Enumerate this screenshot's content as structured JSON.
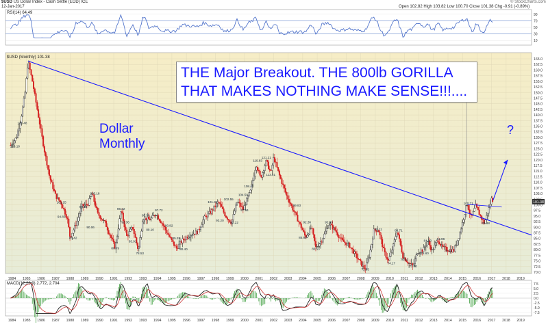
{
  "header": {
    "symbol": "$USD",
    "name": "US Dollar Index - Cash Settle (EOD)",
    "exchange": "ICE",
    "date": "12-Jan-2017",
    "open_label": "Open",
    "open": "102.82",
    "high_label": "High",
    "high": "103.82",
    "low_label": "Low",
    "low": "100.70",
    "close_label": "Close",
    "close": "101.38",
    "chg_label": "Chg",
    "chg": "-0.91 (-0.89%)",
    "watermark": "© StockCharts.com"
  },
  "rsi_panel": {
    "label": "RSI(14) 64.49",
    "ticks": [
      "90",
      "70",
      "50",
      "30",
      "10"
    ],
    "current": "64.49"
  },
  "price_panel": {
    "label": "$USD (Monthly) 101.38",
    "current_price": "101.38"
  },
  "macd_panel": {
    "label": "MACD(12,26,9) 2.772, 2.704",
    "ticks": [
      "7.5",
      "5.0",
      "2.5",
      "0.0",
      "-2.5",
      "-5.0",
      "-7.5"
    ],
    "current_macd": "2.772",
    "current_hist": "0.068"
  },
  "annotations": {
    "callout_line1": "THE Major Breakout.  THE 800lb GORILLA",
    "callout_line2": "THAT MAKES NOTHING MAKE SENSE!!!....",
    "dollar_monthly_line1": "Dollar",
    "dollar_monthly_line2": "Monthly",
    "question": "?"
  },
  "colors": {
    "background_top": "#f6edc6",
    "background_bottom": "#e8ecd9",
    "annotation": "#1a1aff",
    "candle_up": "#222222",
    "candle_down": "#d42020",
    "trendline": "#1a1aff",
    "rsi_line": "#5577cc",
    "macd_line": "#222222",
    "signal_line": "#cc3333",
    "histogram": "#55aa55"
  },
  "chart_data": {
    "type": "line",
    "title": "$USD (Monthly) 101.38",
    "x_ticks": [
      "1984",
      "1985",
      "1986",
      "1987",
      "1988",
      "1989",
      "1990",
      "1991",
      "1992",
      "1993",
      "1994",
      "1995",
      "1996",
      "1997",
      "1998",
      "1999",
      "2000",
      "2001",
      "2002",
      "2003",
      "2004",
      "2005",
      "2006",
      "2007",
      "2008",
      "2009",
      "2010",
      "2011",
      "2012",
      "2013",
      "2014",
      "2015",
      "2016",
      "2017",
      "2018",
      "2019"
    ],
    "y_ticks": [
      "165.0",
      "162.5",
      "160.0",
      "157.5",
      "155.0",
      "152.5",
      "150.0",
      "147.5",
      "145.0",
      "142.5",
      "140.0",
      "137.5",
      "135.0",
      "132.5",
      "130.0",
      "127.5",
      "125.0",
      "122.5",
      "120.0",
      "117.5",
      "115.0",
      "112.5",
      "110.0",
      "107.5",
      "105.0",
      "102.5",
      "100.0",
      "97.5",
      "95.0",
      "92.5",
      "90.0",
      "87.5",
      "85.0",
      "82.5",
      "80.0",
      "77.5",
      "75.0",
      "72.5",
      "70.0"
    ],
    "ylim": [
      70,
      165
    ],
    "series": [
      {
        "values": [
          {
            "x": 1983.9,
            "y": 126.5
          },
          {
            "x": 1984.3,
            "y": 130.0
          },
          {
            "x": 1984.6,
            "y": 138.0
          },
          {
            "x": 1984.9,
            "y": 150.0
          },
          {
            "x": 1985.1,
            "y": 164.0
          },
          {
            "x": 1985.4,
            "y": 155.0
          },
          {
            "x": 1985.8,
            "y": 140.0
          },
          {
            "x": 1986.2,
            "y": 125.0
          },
          {
            "x": 1986.6,
            "y": 112.0
          },
          {
            "x": 1987.0,
            "y": 104.0
          },
          {
            "x": 1987.4,
            "y": 100.5
          },
          {
            "x": 1987.8,
            "y": 94.0
          },
          {
            "x": 1988.0,
            "y": 85.4
          },
          {
            "x": 1988.5,
            "y": 93.0
          },
          {
            "x": 1988.8,
            "y": 99.5
          },
          {
            "x": 1989.2,
            "y": 100.0
          },
          {
            "x": 1989.5,
            "y": 105.0
          },
          {
            "x": 1989.9,
            "y": 96.0
          },
          {
            "x": 1990.4,
            "y": 92.0
          },
          {
            "x": 1990.9,
            "y": 84.0
          },
          {
            "x": 1991.1,
            "y": 80.8
          },
          {
            "x": 1991.5,
            "y": 97.5
          },
          {
            "x": 1991.9,
            "y": 86.0
          },
          {
            "x": 1992.3,
            "y": 90.0
          },
          {
            "x": 1992.7,
            "y": 79.5
          },
          {
            "x": 1993.0,
            "y": 94.0
          },
          {
            "x": 1993.5,
            "y": 93.5
          },
          {
            "x": 1993.9,
            "y": 96.0
          },
          {
            "x": 1994.3,
            "y": 92.0
          },
          {
            "x": 1994.8,
            "y": 86.0
          },
          {
            "x": 1995.3,
            "y": 80.5
          },
          {
            "x": 1995.7,
            "y": 84.0
          },
          {
            "x": 1996.2,
            "y": 86.5
          },
          {
            "x": 1996.8,
            "y": 88.0
          },
          {
            "x": 1997.2,
            "y": 94.0
          },
          {
            "x": 1997.7,
            "y": 97.0
          },
          {
            "x": 1998.2,
            "y": 101.3
          },
          {
            "x": 1998.7,
            "y": 95.0
          },
          {
            "x": 1999.1,
            "y": 92.0
          },
          {
            "x": 1999.5,
            "y": 101.5
          },
          {
            "x": 1999.9,
            "y": 98.0
          },
          {
            "x": 2000.4,
            "y": 106.0
          },
          {
            "x": 2000.8,
            "y": 118.0
          },
          {
            "x": 2001.1,
            "y": 112.0
          },
          {
            "x": 2001.5,
            "y": 119.5
          },
          {
            "x": 2001.8,
            "y": 114.0
          },
          {
            "x": 2002.0,
            "y": 121.2
          },
          {
            "x": 2002.4,
            "y": 113.0
          },
          {
            "x": 2002.9,
            "y": 104.0
          },
          {
            "x": 2003.4,
            "y": 97.0
          },
          {
            "x": 2003.9,
            "y": 90.0
          },
          {
            "x": 2004.2,
            "y": 85.6
          },
          {
            "x": 2004.6,
            "y": 90.0
          },
          {
            "x": 2004.9,
            "y": 81.0
          },
          {
            "x": 2005.3,
            "y": 84.0
          },
          {
            "x": 2005.8,
            "y": 91.5
          },
          {
            "x": 2006.2,
            "y": 89.0
          },
          {
            "x": 2006.7,
            "y": 84.0
          },
          {
            "x": 2007.2,
            "y": 82.0
          },
          {
            "x": 2007.7,
            "y": 77.0
          },
          {
            "x": 2008.1,
            "y": 73.0
          },
          {
            "x": 2008.3,
            "y": 71.3
          },
          {
            "x": 2008.6,
            "y": 78.0
          },
          {
            "x": 2008.9,
            "y": 88.5
          },
          {
            "x": 2009.2,
            "y": 89.1
          },
          {
            "x": 2009.6,
            "y": 79.0
          },
          {
            "x": 2009.9,
            "y": 75.0
          },
          {
            "x": 2010.2,
            "y": 81.0
          },
          {
            "x": 2010.5,
            "y": 88.7
          },
          {
            "x": 2010.9,
            "y": 77.0
          },
          {
            "x": 2011.3,
            "y": 74.0
          },
          {
            "x": 2011.6,
            "y": 72.7
          },
          {
            "x": 2011.9,
            "y": 79.0
          },
          {
            "x": 2012.3,
            "y": 80.0
          },
          {
            "x": 2012.6,
            "y": 84.0
          },
          {
            "x": 2012.9,
            "y": 79.5
          },
          {
            "x": 2013.3,
            "y": 84.5
          },
          {
            "x": 2013.6,
            "y": 81.0
          },
          {
            "x": 2014.0,
            "y": 80.0
          },
          {
            "x": 2014.4,
            "y": 79.7
          },
          {
            "x": 2014.8,
            "y": 87.0
          },
          {
            "x": 2015.1,
            "y": 95.0
          },
          {
            "x": 2015.3,
            "y": 100.7
          },
          {
            "x": 2015.6,
            "y": 94.0
          },
          {
            "x": 2015.9,
            "y": 99.5
          },
          {
            "x": 2016.3,
            "y": 94.0
          },
          {
            "x": 2016.5,
            "y": 91.9
          },
          {
            "x": 2016.8,
            "y": 98.0
          },
          {
            "x": 2017.0,
            "y": 103.0
          },
          {
            "x": 2017.1,
            "y": 101.4
          }
        ]
      }
    ],
    "data_labels": [
      {
        "x": 1984.2,
        "y": 126.18,
        "text": "126.18"
      },
      {
        "x": 1984.7,
        "y": 136.48,
        "text": "136.48"
      },
      {
        "x": 1987.4,
        "y": 101.25,
        "text": "101.25"
      },
      {
        "x": 1987.4,
        "y": 94.8,
        "text": "94.80"
      },
      {
        "x": 1988.2,
        "y": 85.42,
        "text": "85.42"
      },
      {
        "x": 1988.9,
        "y": 99.23,
        "text": "99.23"
      },
      {
        "x": 1989.4,
        "y": 90.06,
        "text": "90.06"
      },
      {
        "x": 1989.7,
        "y": 105.18,
        "text": "105.18"
      },
      {
        "x": 1991.1,
        "y": 80.79,
        "text": "80.79"
      },
      {
        "x": 1991.5,
        "y": 98.32,
        "text": "98.32"
      },
      {
        "x": 1991.8,
        "y": 92.36,
        "text": "92.36"
      },
      {
        "x": 1992.3,
        "y": 83.91,
        "text": "83.91"
      },
      {
        "x": 1992.8,
        "y": 78.53,
        "text": "78.53"
      },
      {
        "x": 1993.2,
        "y": 95.39,
        "text": "95.39"
      },
      {
        "x": 1993.5,
        "y": 89.1,
        "text": "89.10"
      },
      {
        "x": 1994.1,
        "y": 97.72,
        "text": "97.72"
      },
      {
        "x": 1994.8,
        "y": 90.82,
        "text": "90.82"
      },
      {
        "x": 1995.3,
        "y": 85.28,
        "text": "85.28"
      },
      {
        "x": 1995.8,
        "y": 80.4,
        "text": "80.40"
      },
      {
        "x": 1997.8,
        "y": 101.34,
        "text": "101.34"
      },
      {
        "x": 1998.3,
        "y": 93.2,
        "text": "93.20"
      },
      {
        "x": 1998.9,
        "y": 102.55,
        "text": "102.55"
      },
      {
        "x": 1999.3,
        "y": 92.22,
        "text": "92.22"
      },
      {
        "x": 1999.9,
        "y": 104.5,
        "text": "104.50"
      },
      {
        "x": 2000.0,
        "y": 97.64,
        "text": "97.64"
      },
      {
        "x": 2000.3,
        "y": 108.42,
        "text": "108.42"
      },
      {
        "x": 2000.9,
        "y": 119.83,
        "text": "119.83"
      },
      {
        "x": 2001.5,
        "y": 121.21,
        "text": "121.21"
      },
      {
        "x": 2001.8,
        "y": 113.61,
        "text": "113.61"
      },
      {
        "x": 2003.6,
        "y": 99.83,
        "text": "99.83"
      },
      {
        "x": 2004.3,
        "y": 92.36,
        "text": "92.36"
      },
      {
        "x": 2004.0,
        "y": 85.6,
        "text": "85.60"
      },
      {
        "x": 2004.9,
        "y": 80.53,
        "text": "80.53"
      },
      {
        "x": 2005.8,
        "y": 92.33,
        "text": "92.33"
      },
      {
        "x": 2008.3,
        "y": 71.33,
        "text": "71.33"
      },
      {
        "x": 2009.2,
        "y": 89.11,
        "text": "89.11"
      },
      {
        "x": 2010.1,
        "y": 74.17,
        "text": "74.17"
      },
      {
        "x": 2010.6,
        "y": 88.71,
        "text": "88.71"
      },
      {
        "x": 2011.0,
        "y": 75.63,
        "text": "75.63"
      },
      {
        "x": 2011.6,
        "y": 72.7,
        "text": "72.70"
      },
      {
        "x": 2012.6,
        "y": 84.1,
        "text": "84.10"
      },
      {
        "x": 2012.4,
        "y": 78.6,
        "text": "78.60"
      },
      {
        "x": 2013.5,
        "y": 84.96,
        "text": "84.96"
      },
      {
        "x": 2014.0,
        "y": 79.55,
        "text": "79.55"
      },
      {
        "x": 2015.4,
        "y": 100.71,
        "text": "100.71"
      },
      {
        "x": 2016.6,
        "y": 91.88,
        "text": "91.88"
      }
    ]
  }
}
